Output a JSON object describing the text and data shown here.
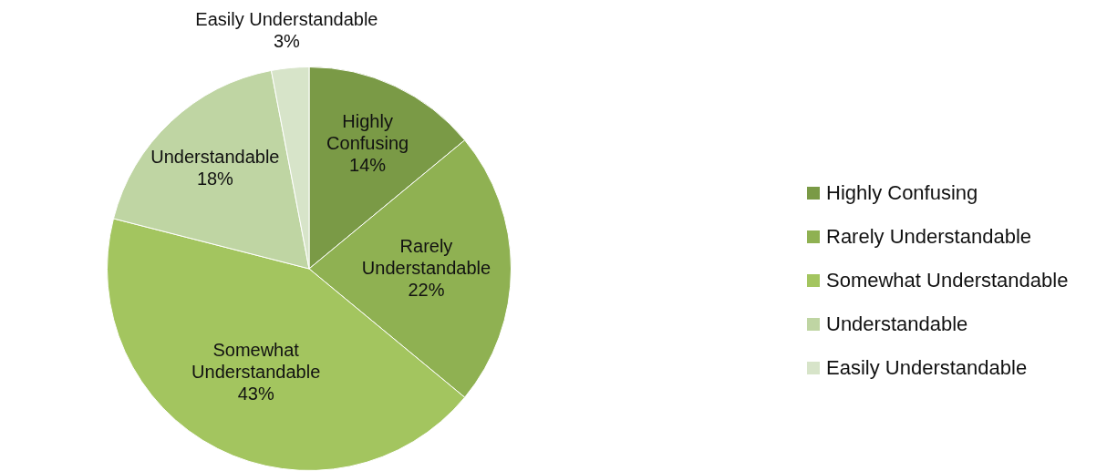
{
  "chart_data": {
    "type": "pie",
    "categories": [
      "Highly Confusing",
      "Rarely Understandable",
      "Somewhat Understandable",
      "Understandable",
      "Easily Understandable"
    ],
    "values": [
      14,
      22,
      43,
      18,
      3
    ],
    "value_labels": [
      "14%",
      "22%",
      "43%",
      "18%",
      "3%"
    ],
    "colors": [
      "#7a9a46",
      "#8fb152",
      "#a3c55f",
      "#bfd5a3",
      "#d7e4c9"
    ],
    "legend": "right"
  }
}
